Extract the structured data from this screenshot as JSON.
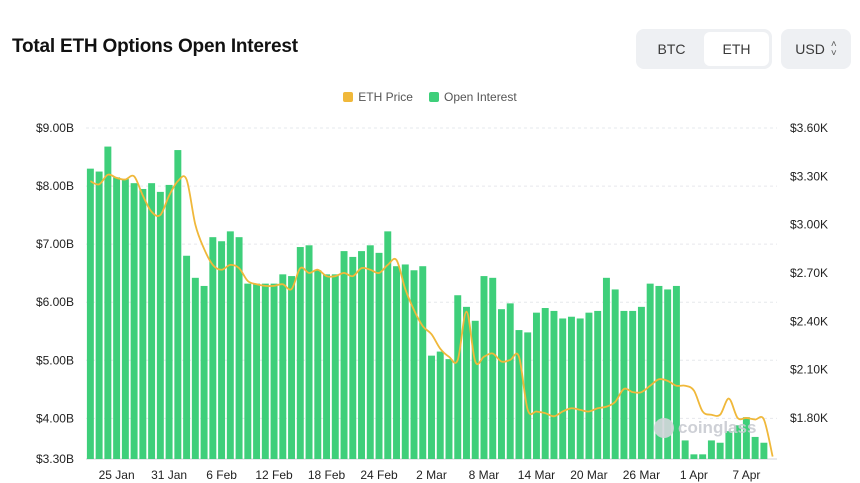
{
  "header": {
    "title": "Total ETH Options Open Interest",
    "coin_options": [
      "BTC",
      "ETH"
    ],
    "selected_coin": "ETH",
    "currency": "USD"
  },
  "watermark": "coinglass",
  "chart_data": {
    "type": "bar",
    "title": "Total ETH Options Open Interest",
    "legend": {
      "position": "top-center",
      "entries": [
        "ETH Price",
        "Open Interest"
      ]
    },
    "colors": {
      "open_interest": "#3ecf7a",
      "eth_price": "#f0b83a"
    },
    "x_tick_labels": [
      "25 Jan",
      "31 Jan",
      "6 Feb",
      "12 Feb",
      "18 Feb",
      "24 Feb",
      "2 Mar",
      "8 Mar",
      "14 Mar",
      "20 Mar",
      "26 Mar",
      "1 Apr",
      "7 Apr"
    ],
    "x_tick_index": [
      3,
      9,
      15,
      21,
      27,
      33,
      39,
      45,
      51,
      57,
      63,
      69,
      75
    ],
    "y_left": {
      "label": "",
      "ticks": [
        "$9.00B",
        "$8.00B",
        "$7.00B",
        "$6.00B",
        "$5.00B",
        "$4.00B",
        "$3.30B"
      ],
      "tick_values": [
        9.0,
        8.0,
        7.0,
        6.0,
        5.0,
        4.0,
        3.3
      ],
      "range": [
        3.3,
        9.0
      ],
      "unit": "USD billions"
    },
    "y_right": {
      "label": "",
      "ticks": [
        "$3.60K",
        "$3.30K",
        "$3.00K",
        "$2.70K",
        "$2.40K",
        "$2.10K",
        "$1.80K"
      ],
      "tick_values": [
        3.6,
        3.3,
        3.0,
        2.7,
        2.4,
        2.1,
        1.8
      ],
      "range": [
        1.545,
        3.6
      ],
      "unit": "USD thousands"
    },
    "grid": true,
    "series": [
      {
        "name": "Open Interest",
        "axis": "left",
        "values": [
          8.3,
          8.25,
          8.68,
          8.15,
          8.12,
          8.05,
          7.95,
          8.05,
          7.9,
          8.02,
          8.62,
          6.8,
          6.42,
          6.28,
          7.12,
          7.05,
          7.22,
          7.12,
          6.32,
          6.32,
          6.32,
          6.32,
          6.48,
          6.45,
          6.95,
          6.98,
          6.55,
          6.48,
          6.48,
          6.88,
          6.78,
          6.88,
          6.98,
          6.85,
          7.22,
          6.62,
          6.65,
          6.55,
          6.62,
          5.08,
          5.15,
          5.02,
          6.12,
          5.92,
          5.68,
          6.45,
          6.42,
          5.88,
          5.98,
          5.52,
          5.48,
          5.82,
          5.9,
          5.85,
          5.72,
          5.75,
          5.72,
          5.82,
          5.85,
          6.42,
          6.22,
          5.85,
          5.85,
          5.92,
          6.32,
          6.28,
          6.22,
          6.28,
          3.62,
          3.38,
          3.38,
          3.62,
          3.58,
          3.78,
          3.88,
          4.02,
          3.68,
          3.58,
          3.3
        ]
      },
      {
        "name": "ETH Price",
        "axis": "right",
        "values": [
          3.27,
          3.25,
          3.31,
          3.29,
          3.28,
          3.3,
          3.18,
          3.08,
          3.06,
          3.18,
          3.27,
          3.28,
          3.0,
          2.85,
          2.75,
          2.72,
          2.75,
          2.73,
          2.65,
          2.63,
          2.62,
          2.62,
          2.63,
          2.6,
          2.73,
          2.7,
          2.72,
          2.68,
          2.68,
          2.7,
          2.68,
          2.73,
          2.72,
          2.7,
          2.75,
          2.78,
          2.6,
          2.47,
          2.37,
          2.32,
          2.23,
          2.18,
          2.16,
          2.46,
          2.15,
          2.18,
          2.2,
          2.15,
          2.16,
          2.18,
          1.85,
          1.84,
          1.83,
          1.81,
          1.84,
          1.86,
          1.85,
          1.84,
          1.86,
          1.87,
          1.9,
          1.98,
          1.96,
          1.96,
          2.0,
          2.04,
          2.03,
          2.0,
          2.0,
          1.97,
          1.84,
          1.82,
          1.82,
          1.92,
          1.8,
          1.8,
          1.79,
          1.79,
          1.56
        ]
      }
    ]
  }
}
